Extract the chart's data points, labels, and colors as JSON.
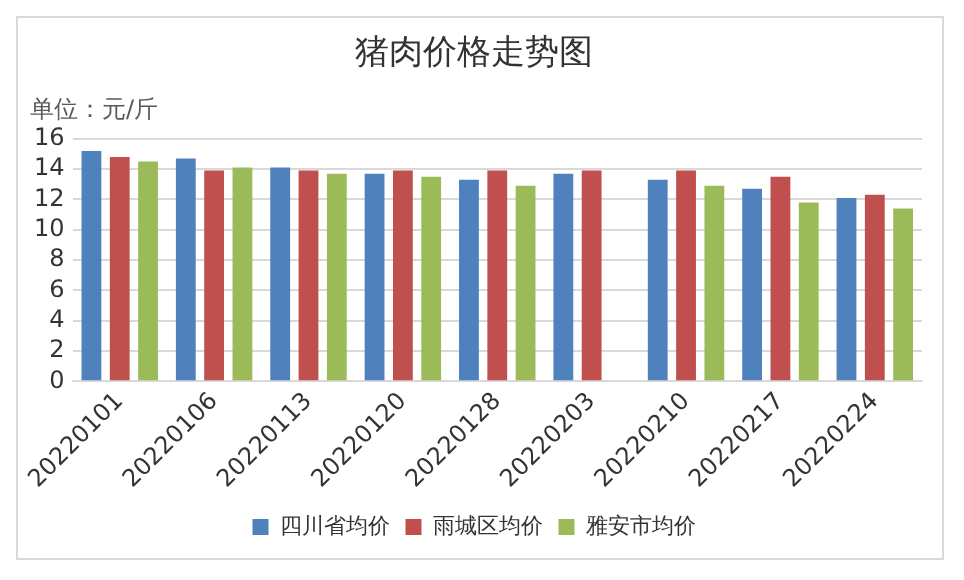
{
  "chart_data": {
    "type": "bar",
    "title": "猪肉价格走势图",
    "annotations": [
      "单位：元/斤"
    ],
    "categories": [
      "20220101",
      "20220106",
      "20220113",
      "20220120",
      "20220128",
      "20220203",
      "20220210",
      "20220217",
      "20220224"
    ],
    "series": [
      {
        "name": "四川省均价",
        "color": "#4f81bd",
        "values": [
          15.2,
          14.7,
          14.1,
          13.7,
          13.3,
          13.7,
          13.3,
          12.7,
          12.1
        ]
      },
      {
        "name": "雨城区均价",
        "color": "#c0504d",
        "values": [
          14.8,
          13.9,
          13.9,
          13.9,
          13.9,
          13.9,
          13.9,
          13.5,
          12.3
        ]
      },
      {
        "name": "雅安市均价",
        "color": "#9bbb59",
        "values": [
          14.5,
          14.1,
          13.7,
          13.5,
          12.9,
          null,
          12.9,
          11.8,
          11.4
        ]
      }
    ],
    "ylim": [
      0,
      16
    ],
    "yticks": [
      0,
      2,
      4,
      6,
      8,
      10,
      12,
      14,
      16
    ],
    "grid": "y",
    "legend": "bottom"
  }
}
